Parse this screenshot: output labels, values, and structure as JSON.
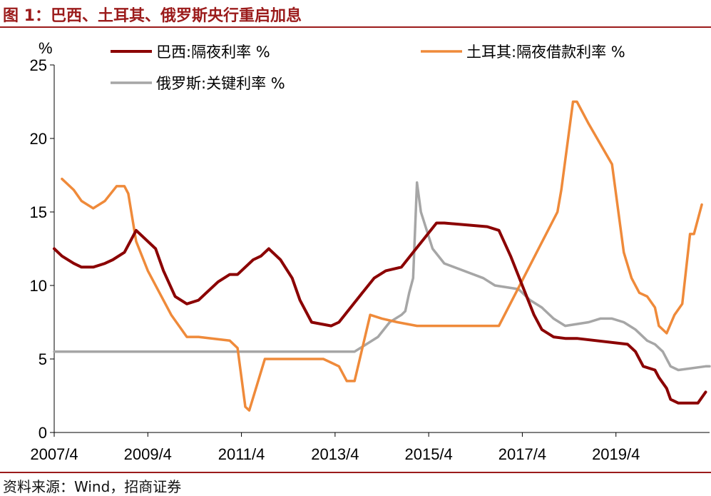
{
  "title": "图 1：巴西、土耳其、俄罗斯央行重启加息",
  "source": "资料来源：Wind，招商证券",
  "chart_data": {
    "type": "line",
    "title": "图 1：巴西、土耳其、俄罗斯央行重启加息",
    "ylabel": "%",
    "ylim": [
      0,
      25
    ],
    "yticks": [
      "0",
      "5",
      "10",
      "15",
      "20",
      "25"
    ],
    "xticks": [
      "2007/4",
      "2009/4",
      "2011/4",
      "2013/4",
      "2015/4",
      "2017/4",
      "2019/4"
    ],
    "xlim": [
      "2007-04",
      "2021-04"
    ],
    "grid": false,
    "legend_position": "top",
    "series": [
      {
        "name": "巴西:隔夜利率 %",
        "color": "#8b0000",
        "x": [
          "2007-04",
          "2007-06",
          "2007-09",
          "2007-11",
          "2008-02",
          "2008-05",
          "2008-07",
          "2008-10",
          "2009-01",
          "2009-03",
          "2009-06",
          "2009-08",
          "2009-11",
          "2010-02",
          "2010-05",
          "2010-07",
          "2010-10",
          "2011-01",
          "2011-03",
          "2011-05",
          "2011-07",
          "2011-09",
          "2011-11",
          "2012-02",
          "2012-05",
          "2012-07",
          "2012-10",
          "2013-03",
          "2013-05",
          "2013-08",
          "2013-11",
          "2014-02",
          "2014-05",
          "2014-09",
          "2014-12",
          "2015-03",
          "2015-06",
          "2015-08",
          "2016-07",
          "2016-10",
          "2017-01",
          "2017-04",
          "2017-07",
          "2017-09",
          "2017-12",
          "2018-03",
          "2018-06",
          "2019-07",
          "2019-09",
          "2019-11",
          "2020-02",
          "2020-03",
          "2020-05",
          "2020-06",
          "2020-08",
          "2021-01",
          "2021-03"
        ],
        "values": [
          12.5,
          12.0,
          11.5,
          11.25,
          11.25,
          11.5,
          11.75,
          12.25,
          13.75,
          13.25,
          12.5,
          11.0,
          9.25,
          8.75,
          9.0,
          9.5,
          10.25,
          10.75,
          10.75,
          11.25,
          11.75,
          12.0,
          12.5,
          11.75,
          10.5,
          9.0,
          7.5,
          7.25,
          7.5,
          8.5,
          9.5,
          10.5,
          11.0,
          11.25,
          12.25,
          13.25,
          14.25,
          14.25,
          14.0,
          13.75,
          12.0,
          10.0,
          8.0,
          7.0,
          6.5,
          6.4,
          6.4,
          6.0,
          5.5,
          4.5,
          4.25,
          3.75,
          3.0,
          2.25,
          2.0,
          2.0,
          2.75
        ]
      },
      {
        "name": "土耳其:隔夜借款利率 %",
        "color": "#ef8a3a",
        "x": [
          "2007-06",
          "2007-09",
          "2007-11",
          "2008-02",
          "2008-05",
          "2008-08",
          "2008-10",
          "2008-11",
          "2009-01",
          "2009-04",
          "2009-07",
          "2009-10",
          "2010-02",
          "2010-05",
          "2011-01",
          "2011-03",
          "2011-05",
          "2011-06",
          "2011-10",
          "2012-09",
          "2013-01",
          "2013-03",
          "2013-05",
          "2013-07",
          "2013-09",
          "2014-01",
          "2014-04",
          "2014-08",
          "2015-01",
          "2016-10",
          "2018-01",
          "2018-02",
          "2018-05",
          "2018-06",
          "2018-09",
          "2019-03",
          "2019-06",
          "2019-08",
          "2019-10",
          "2019-12",
          "2020-02",
          "2020-03",
          "2020-05",
          "2020-07",
          "2020-09",
          "2020-11",
          "2020-12",
          "2021-02"
        ],
        "values": [
          17.25,
          16.5,
          15.75,
          15.25,
          15.75,
          16.75,
          16.75,
          16.25,
          13.0,
          11.0,
          9.5,
          8.0,
          6.5,
          6.5,
          6.25,
          5.75,
          1.75,
          1.5,
          5.0,
          5.0,
          5.0,
          4.75,
          4.5,
          3.5,
          3.5,
          8.0,
          7.75,
          7.5,
          7.25,
          7.25,
          15.0,
          16.5,
          22.5,
          22.5,
          21.0,
          18.25,
          12.25,
          10.5,
          9.5,
          9.25,
          8.5,
          7.25,
          6.75,
          8.0,
          8.75,
          13.5,
          13.5,
          15.5
        ]
      },
      {
        "name": "俄罗斯:关键利率 %",
        "color": "#a6a6a6",
        "x": [
          "2007-04",
          "2013-09",
          "2014-03",
          "2014-06",
          "2014-09",
          "2014-10",
          "2014-11",
          "2014-12",
          "2015-01",
          "2015-02",
          "2015-05",
          "2015-08",
          "2016-06",
          "2016-09",
          "2017-03",
          "2017-06",
          "2017-09",
          "2017-12",
          "2018-03",
          "2018-09",
          "2018-12",
          "2019-03",
          "2019-06",
          "2019-09",
          "2019-12",
          "2020-02",
          "2020-04",
          "2020-06",
          "2020-08",
          "2021-03",
          "2021-04"
        ],
        "values": [
          5.5,
          5.5,
          6.5,
          7.5,
          8.0,
          8.25,
          9.5,
          10.5,
          17.0,
          15.0,
          12.5,
          11.5,
          10.5,
          10.0,
          9.75,
          9.0,
          8.5,
          7.75,
          7.25,
          7.5,
          7.75,
          7.75,
          7.5,
          7.0,
          6.25,
          6.0,
          5.5,
          4.5,
          4.25,
          4.5,
          4.5
        ]
      }
    ]
  }
}
